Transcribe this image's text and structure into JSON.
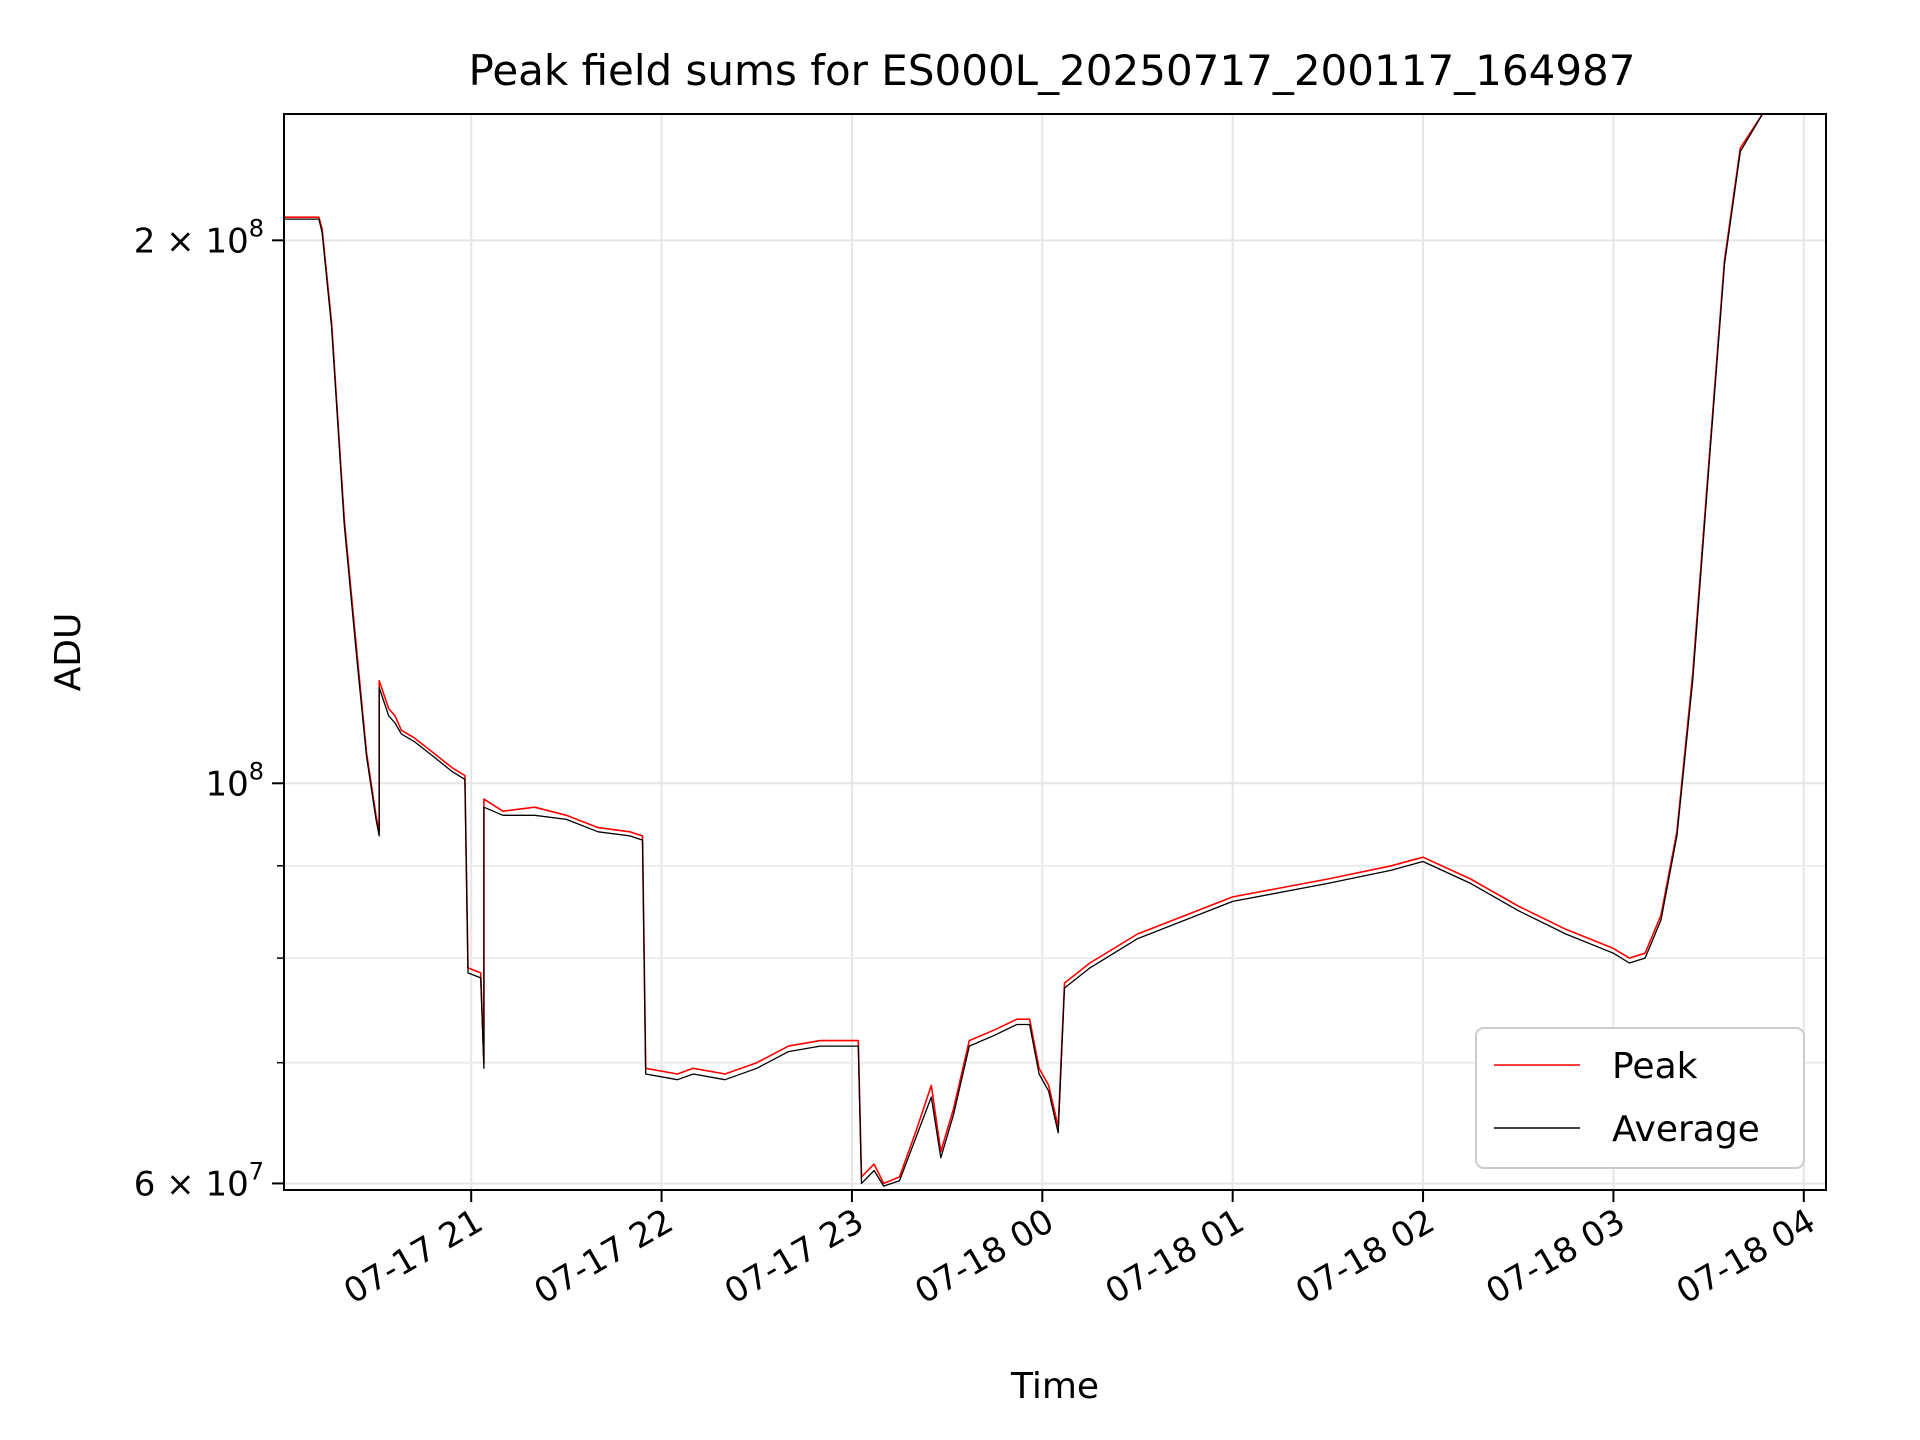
{
  "chart_data": {
    "type": "line",
    "title": "Peak field sums for ES000L_20250717_200117_164987",
    "xlabel": "Time",
    "ylabel": "ADU",
    "yscale": "log",
    "xlim": [
      "2025-07-17 20:01",
      "2025-07-18 04:07"
    ],
    "ylim": [
      59500000,
      235000000
    ],
    "grid": true,
    "legend_position": "lower-right",
    "x_ticks": [
      {
        "t": "2025-07-17 21:00",
        "label": "07-17 21"
      },
      {
        "t": "2025-07-17 22:00",
        "label": "07-17 22"
      },
      {
        "t": "2025-07-17 23:00",
        "label": "07-17 23"
      },
      {
        "t": "2025-07-18 00:00",
        "label": "07-18 00"
      },
      {
        "t": "2025-07-18 01:00",
        "label": "07-18 01"
      },
      {
        "t": "2025-07-18 02:00",
        "label": "07-18 02"
      },
      {
        "t": "2025-07-18 03:00",
        "label": "07-18 03"
      },
      {
        "t": "2025-07-18 04:00",
        "label": "07-18 04"
      }
    ],
    "y_ticks": [
      {
        "value": 60000000,
        "base": "6 × 10",
        "exp": "7"
      },
      {
        "value": 100000000,
        "base": "10",
        "exp": "8"
      },
      {
        "value": 200000000,
        "base": "2 × 10",
        "exp": "8"
      }
    ],
    "y_minor_ticks": [
      70000000,
      80000000,
      90000000
    ],
    "series": [
      {
        "name": "Peak",
        "color": "#ff0000",
        "points": [
          [
            "2025-07-17 20:01",
            206000000
          ],
          [
            "2025-07-17 20:12",
            206000000
          ],
          [
            "2025-07-17 20:13",
            203000000
          ],
          [
            "2025-07-17 20:16",
            180000000
          ],
          [
            "2025-07-17 20:20",
            140000000
          ],
          [
            "2025-07-17 20:24",
            118000000
          ],
          [
            "2025-07-17 20:27",
            104000000
          ],
          [
            "2025-07-17 20:30",
            96000000
          ],
          [
            "2025-07-17 20:31",
            94000000
          ],
          [
            "2025-07-17 20:31",
            114000000
          ],
          [
            "2025-07-17 20:34",
            110000000
          ],
          [
            "2025-07-17 20:36",
            109000000
          ],
          [
            "2025-07-17 20:38",
            107000000
          ],
          [
            "2025-07-17 20:42",
            106000000
          ],
          [
            "2025-07-17 20:48",
            104000000
          ],
          [
            "2025-07-17 20:54",
            102000000
          ],
          [
            "2025-07-17 20:58",
            101000000
          ],
          [
            "2025-07-17 20:59",
            79000000
          ],
          [
            "2025-07-17 21:03",
            78500000
          ],
          [
            "2025-07-17 21:04",
            70000000
          ],
          [
            "2025-07-17 21:04",
            98000000
          ],
          [
            "2025-07-17 21:10",
            96500000
          ],
          [
            "2025-07-17 21:20",
            97000000
          ],
          [
            "2025-07-17 21:30",
            96000000
          ],
          [
            "2025-07-17 21:40",
            94500000
          ],
          [
            "2025-07-17 21:50",
            94000000
          ],
          [
            "2025-07-17 21:54",
            93500000
          ],
          [
            "2025-07-17 21:55",
            69500000
          ],
          [
            "2025-07-17 22:05",
            69000000
          ],
          [
            "2025-07-17 22:10",
            69500000
          ],
          [
            "2025-07-17 22:20",
            69000000
          ],
          [
            "2025-07-17 22:30",
            70000000
          ],
          [
            "2025-07-17 22:40",
            71500000
          ],
          [
            "2025-07-17 22:50",
            72000000
          ],
          [
            "2025-07-17 23:02",
            72000000
          ],
          [
            "2025-07-17 23:03",
            60500000
          ],
          [
            "2025-07-17 23:07",
            61500000
          ],
          [
            "2025-07-17 23:10",
            60000000
          ],
          [
            "2025-07-17 23:15",
            60500000
          ],
          [
            "2025-07-17 23:20",
            64000000
          ],
          [
            "2025-07-17 23:25",
            68000000
          ],
          [
            "2025-07-17 23:28",
            62500000
          ],
          [
            "2025-07-17 23:32",
            66000000
          ],
          [
            "2025-07-17 23:37",
            72000000
          ],
          [
            "2025-07-17 23:45",
            73000000
          ],
          [
            "2025-07-17 23:52",
            74000000
          ],
          [
            "2025-07-17 23:56",
            74000000
          ],
          [
            "2025-07-17 23:59",
            69500000
          ],
          [
            "2025-07-18 00:02",
            68000000
          ],
          [
            "2025-07-18 00:05",
            64500000
          ],
          [
            "2025-07-18 00:07",
            77500000
          ],
          [
            "2025-07-18 00:15",
            79500000
          ],
          [
            "2025-07-18 00:30",
            82500000
          ],
          [
            "2025-07-18 01:00",
            86500000
          ],
          [
            "2025-07-18 01:30",
            88500000
          ],
          [
            "2025-07-18 01:50",
            90000000
          ],
          [
            "2025-07-18 02:00",
            91000000
          ],
          [
            "2025-07-18 02:15",
            88500000
          ],
          [
            "2025-07-18 02:30",
            85500000
          ],
          [
            "2025-07-18 02:45",
            83000000
          ],
          [
            "2025-07-18 03:00",
            81000000
          ],
          [
            "2025-07-18 03:05",
            80000000
          ],
          [
            "2025-07-18 03:10",
            80500000
          ],
          [
            "2025-07-18 03:15",
            84500000
          ],
          [
            "2025-07-18 03:20",
            94000000
          ],
          [
            "2025-07-18 03:25",
            115000000
          ],
          [
            "2025-07-18 03:30",
            150000000
          ],
          [
            "2025-07-18 03:35",
            195000000
          ],
          [
            "2025-07-18 03:40",
            225000000
          ],
          [
            "2025-07-18 03:47",
            235000000
          ],
          [
            "2025-07-18 04:07",
            235000000
          ]
        ]
      },
      {
        "name": "Average",
        "color": "#000000",
        "points": [
          [
            "2025-07-17 20:01",
            205500000
          ],
          [
            "2025-07-17 20:12",
            205500000
          ],
          [
            "2025-07-17 20:13",
            202000000
          ],
          [
            "2025-07-17 20:16",
            179000000
          ],
          [
            "2025-07-17 20:20",
            139000000
          ],
          [
            "2025-07-17 20:24",
            117000000
          ],
          [
            "2025-07-17 20:27",
            103500000
          ],
          [
            "2025-07-17 20:30",
            95500000
          ],
          [
            "2025-07-17 20:31",
            93500000
          ],
          [
            "2025-07-17 20:31",
            113000000
          ],
          [
            "2025-07-17 20:34",
            109000000
          ],
          [
            "2025-07-17 20:36",
            108000000
          ],
          [
            "2025-07-17 20:38",
            106500000
          ],
          [
            "2025-07-17 20:42",
            105500000
          ],
          [
            "2025-07-17 20:48",
            103500000
          ],
          [
            "2025-07-17 20:54",
            101500000
          ],
          [
            "2025-07-17 20:58",
            100500000
          ],
          [
            "2025-07-17 20:59",
            78500000
          ],
          [
            "2025-07-17 21:03",
            78000000
          ],
          [
            "2025-07-17 21:04",
            69500000
          ],
          [
            "2025-07-17 21:04",
            97000000
          ],
          [
            "2025-07-17 21:10",
            96000000
          ],
          [
            "2025-07-17 21:20",
            96000000
          ],
          [
            "2025-07-17 21:30",
            95500000
          ],
          [
            "2025-07-17 21:40",
            94000000
          ],
          [
            "2025-07-17 21:50",
            93500000
          ],
          [
            "2025-07-17 21:54",
            93000000
          ],
          [
            "2025-07-17 21:55",
            69000000
          ],
          [
            "2025-07-17 22:05",
            68500000
          ],
          [
            "2025-07-17 22:10",
            69000000
          ],
          [
            "2025-07-17 22:20",
            68500000
          ],
          [
            "2025-07-17 22:30",
            69500000
          ],
          [
            "2025-07-17 22:40",
            71000000
          ],
          [
            "2025-07-17 22:50",
            71500000
          ],
          [
            "2025-07-17 23:02",
            71500000
          ],
          [
            "2025-07-17 23:03",
            60000000
          ],
          [
            "2025-07-17 23:07",
            61000000
          ],
          [
            "2025-07-17 23:10",
            59800000
          ],
          [
            "2025-07-17 23:15",
            60200000
          ],
          [
            "2025-07-17 23:20",
            63500000
          ],
          [
            "2025-07-17 23:25",
            67000000
          ],
          [
            "2025-07-17 23:28",
            62000000
          ],
          [
            "2025-07-17 23:32",
            65500000
          ],
          [
            "2025-07-17 23:37",
            71500000
          ],
          [
            "2025-07-17 23:45",
            72500000
          ],
          [
            "2025-07-17 23:52",
            73500000
          ],
          [
            "2025-07-17 23:56",
            73500000
          ],
          [
            "2025-07-17 23:59",
            69000000
          ],
          [
            "2025-07-18 00:02",
            67500000
          ],
          [
            "2025-07-18 00:05",
            64000000
          ],
          [
            "2025-07-18 00:07",
            77000000
          ],
          [
            "2025-07-18 00:15",
            79000000
          ],
          [
            "2025-07-18 00:30",
            82000000
          ],
          [
            "2025-07-18 01:00",
            86000000
          ],
          [
            "2025-07-18 01:30",
            88000000
          ],
          [
            "2025-07-18 01:50",
            89500000
          ],
          [
            "2025-07-18 02:00",
            90500000
          ],
          [
            "2025-07-18 02:15",
            88000000
          ],
          [
            "2025-07-18 02:30",
            85000000
          ],
          [
            "2025-07-18 02:45",
            82500000
          ],
          [
            "2025-07-18 03:00",
            80500000
          ],
          [
            "2025-07-18 03:05",
            79500000
          ],
          [
            "2025-07-18 03:10",
            80000000
          ],
          [
            "2025-07-18 03:15",
            84000000
          ],
          [
            "2025-07-18 03:20",
            93500000
          ],
          [
            "2025-07-18 03:25",
            114000000
          ],
          [
            "2025-07-18 03:30",
            149000000
          ],
          [
            "2025-07-18 03:35",
            194000000
          ],
          [
            "2025-07-18 03:40",
            224000000
          ],
          [
            "2025-07-18 03:47",
            235000000
          ],
          [
            "2025-07-18 04:07",
            235000000
          ]
        ]
      }
    ]
  }
}
